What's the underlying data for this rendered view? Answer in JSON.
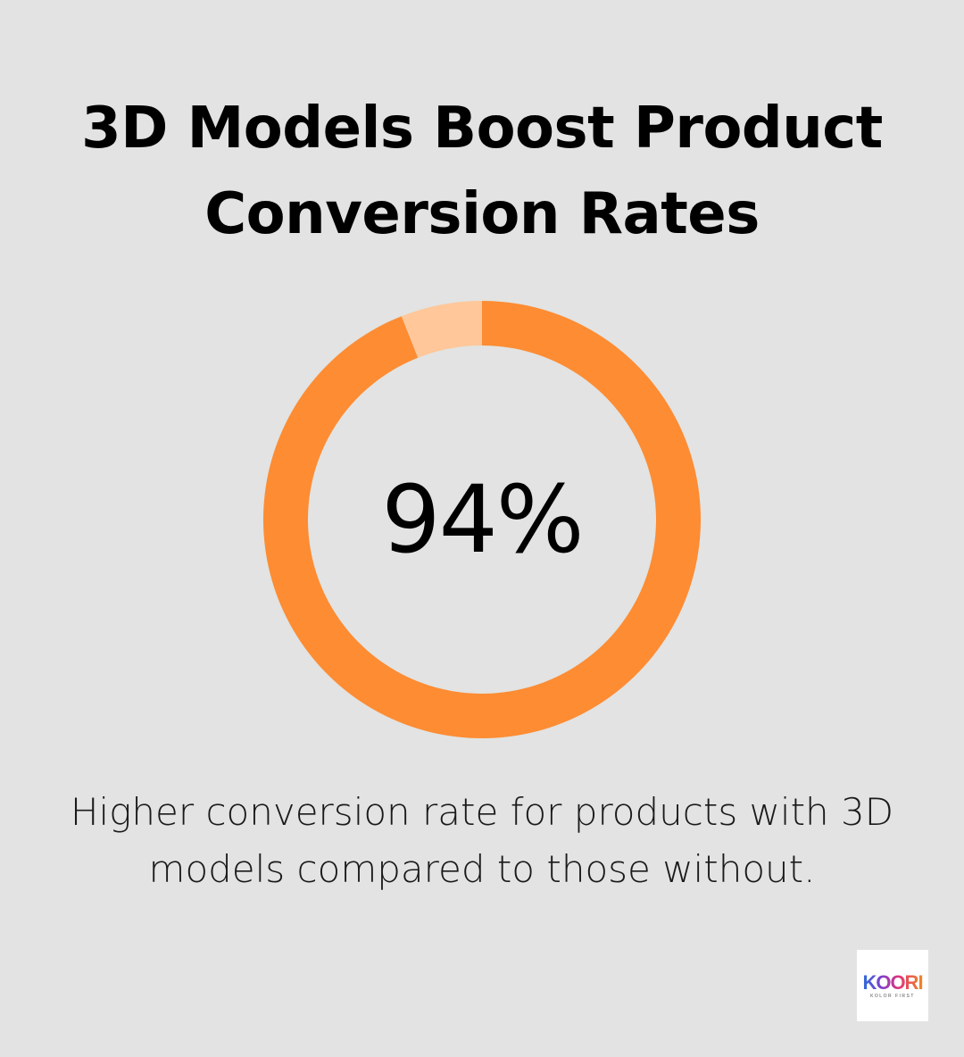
{
  "title": {
    "line1": "3D Models Boost Product",
    "line2": "Conversion Rates"
  },
  "chart_data": {
    "type": "pie",
    "variant": "donut",
    "values": [
      94,
      6
    ],
    "center_label": "94%",
    "colors": [
      "#fd8c33",
      "#ffc79a"
    ]
  },
  "caption": {
    "line1": "Higher conversion rate for products with 3D",
    "line2": "models compared to those without."
  },
  "logo": {
    "word": "KOORI",
    "tagline": "KOLOR FIRST"
  },
  "colors": {
    "background": "#e2e3e2",
    "accent": "#fd8c33",
    "accent_light": "#ffc79a",
    "text": "#000000"
  }
}
